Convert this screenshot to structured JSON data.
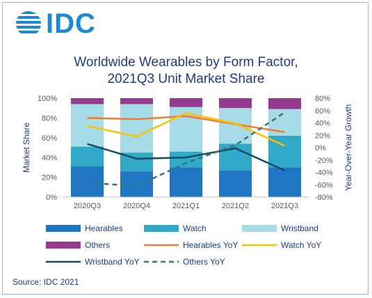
{
  "brand": {
    "name": "IDC",
    "color": "#1a8ad4"
  },
  "source_text": "Source: IDC 2021",
  "chart_data": {
    "type": "bar",
    "subtype": "stacked-bar-with-lines",
    "title_line1": "Worldwide Wearables by Form Factor,",
    "title_line2": "2021Q3 Unit Market Share",
    "categories": [
      "2020Q3",
      "2020Q4",
      "2021Q1",
      "2021Q2",
      "2021Q3"
    ],
    "ylabel": "Market Share",
    "y2label": "Year-Over-Year  Growth",
    "ylim": [
      0,
      100
    ],
    "y2lim": [
      -80,
      80
    ],
    "yticks": [
      "0%",
      "20%",
      "40%",
      "60%",
      "80%",
      "100%"
    ],
    "y2ticks": [
      "-80%",
      "-60%",
      "-40%",
      "-20%",
      "0%",
      "20%",
      "40%",
      "60%",
      "80%"
    ],
    "bars": [
      {
        "name": "Hearables",
        "color": "#1f77c4",
        "values": [
          31,
          26,
          30,
          27,
          30
        ]
      },
      {
        "name": "Watch",
        "color": "#31a9c9",
        "values": [
          20,
          19,
          16,
          27,
          32
        ]
      },
      {
        "name": "Wristband",
        "color": "#a6dbe8",
        "values": [
          43,
          49,
          45,
          36,
          27
        ]
      },
      {
        "name": "Others",
        "color": "#953a8f",
        "values": [
          6,
          6,
          9,
          10,
          11
        ]
      }
    ],
    "lines": [
      {
        "name": "Hearables YoY",
        "color": "#ee7d31",
        "dashed": false,
        "values": [
          48,
          46,
          51,
          38,
          25
        ]
      },
      {
        "name": "Watch YoY",
        "color": "#ffc000",
        "dashed": false,
        "values": [
          35,
          18,
          56,
          39,
          3
        ]
      },
      {
        "name": "Wristband YoY",
        "color": "#154a5f",
        "dashed": false,
        "values": [
          6,
          -18,
          -16,
          -1,
          -37
        ]
      },
      {
        "name": "Others YoY",
        "color": "#2f7a6e",
        "dashed": true,
        "values": [
          -57,
          -62,
          -25,
          4,
          57
        ]
      }
    ],
    "legend_position": "bottom"
  }
}
